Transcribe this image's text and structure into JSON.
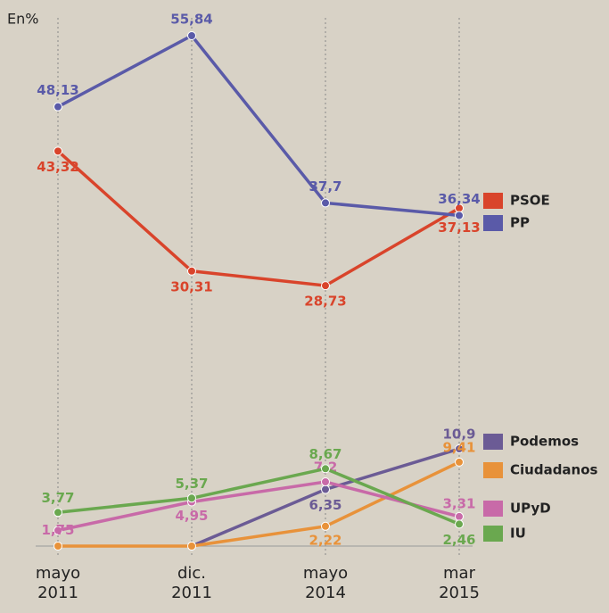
{
  "chart_data": [
    {
      "type": "line",
      "unit_label": "En%",
      "categories": [
        "mayo 2011",
        "dic. 2011",
        "mayo 2014",
        "mar 2015"
      ],
      "ylim": [
        27,
        57
      ],
      "series": [
        {
          "name": "PSOE",
          "color": "#d9442b",
          "values": [
            43.32,
            30.31,
            28.73,
            37.13
          ],
          "value_labels": [
            "43,32",
            "30,31",
            "28,73",
            "37,13"
          ]
        },
        {
          "name": "PP",
          "color": "#5a5aa8",
          "values": [
            48.13,
            55.84,
            37.7,
            36.34
          ],
          "value_labels": [
            "48,13",
            "55,84",
            "37,7",
            "36,34"
          ]
        }
      ]
    },
    {
      "type": "line",
      "ylim": [
        0,
        12
      ],
      "series": [
        {
          "name": "Podemos",
          "color": "#6b5b95",
          "values": [
            null,
            0,
            6.35,
            10.9
          ],
          "value_labels": [
            null,
            null,
            "6,35",
            "10,9"
          ]
        },
        {
          "name": "Ciudadanos",
          "color": "#e8923a",
          "values": [
            0,
            0,
            2.22,
            9.41
          ],
          "value_labels": [
            null,
            null,
            "2,22",
            "9,41"
          ]
        },
        {
          "name": "UPyD",
          "color": "#c86aa8",
          "values": [
            1.75,
            4.95,
            7.2,
            3.31
          ],
          "value_labels": [
            "1,75",
            "4,95",
            "7,2",
            "3,31"
          ]
        },
        {
          "name": "IU",
          "color": "#6aa84f",
          "values": [
            3.77,
            5.37,
            8.67,
            2.46
          ],
          "value_labels": [
            "3,77",
            "5,37",
            "8,67",
            "2,46"
          ]
        }
      ]
    }
  ]
}
